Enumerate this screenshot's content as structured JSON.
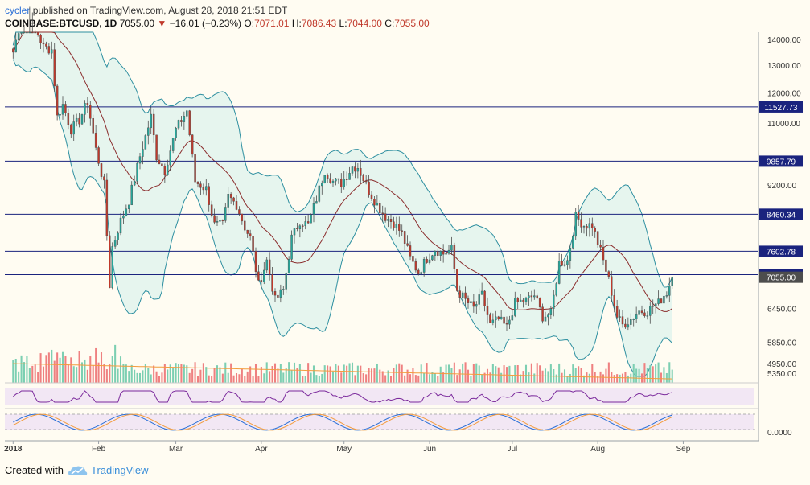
{
  "header": {
    "user": "cycler",
    "published_text": "published on TradingView.com, August 28, 2018 21:51 EDT",
    "symbol": "COINBASE:BTCUSD, 1D",
    "last": "7055.00",
    "arrow": "▼",
    "change": "−16.01 (−0.23%)",
    "o_label": "O:",
    "o_value": "7071.01",
    "h_label": "H:",
    "h_value": "7086.43",
    "l_label": "L:",
    "l_value": "7044.00",
    "c_label": "C:",
    "c_value": "7055.00"
  },
  "footer": {
    "created_with": "Created with",
    "brand": "TradingView",
    "logo_icon": "tradingview-cloud-icon"
  },
  "colors": {
    "background": "#fffcf2",
    "up": "#26a69a",
    "down": "#c0392b",
    "band": "#2e8fa0",
    "band_fill": "#e6f5ee",
    "ma": "#8b2d2d",
    "hline": "#1a237e",
    "volume_up": "#7ccfb2",
    "volume_down": "#ef8080",
    "volume_ma": "#f39c3d",
    "rsi": "#7b2a9c",
    "stoch_k": "#2a6fd6",
    "stoch_d": "#f39c3d",
    "osc_fill": "#e9d8f5"
  },
  "chart_data": {
    "type": "candlestick",
    "y_scale": "log",
    "ylim": [
      5300,
      14300
    ],
    "y_ticks": [
      14000,
      13000,
      12000,
      11000,
      9200,
      6450,
      5850,
      5350,
      4950
    ],
    "y_tick_labels": [
      "14000.00",
      "13000.00",
      "12000.00",
      "11000.00",
      "9200.00",
      "6450.00",
      "5850.00",
      "5350.00",
      "4950.00"
    ],
    "x_range": [
      "2017-12-29",
      "2018-09-28"
    ],
    "x_ticks": [
      "2018-01-01",
      "2018-02-01",
      "2018-03-01",
      "2018-04-01",
      "2018-05-01",
      "2018-06-01",
      "2018-07-01",
      "2018-08-01",
      "2018-09-01"
    ],
    "x_tick_labels": [
      "2018",
      "Feb",
      "Mar",
      "Apr",
      "May",
      "Jun",
      "Jul",
      "Aug",
      "Sep"
    ],
    "horizontal_levels": [
      11527.73,
      9857.79,
      8460.34,
      7602.78,
      7106.78
    ],
    "horizontal_level_labels": [
      "11527.73",
      "9857.79",
      "8460.34",
      "7602.78",
      "7106.78"
    ],
    "last_price": 7055.0,
    "last_price_label": "7055.00",
    "close_path": [
      [
        "2018-01-01",
        13500
      ],
      [
        "2018-01-04",
        14900
      ],
      [
        "2018-01-07",
        16200
      ],
      [
        "2018-01-09",
        14500
      ],
      [
        "2018-01-12",
        13700
      ],
      [
        "2018-01-15",
        13600
      ],
      [
        "2018-01-17",
        11200
      ],
      [
        "2018-01-19",
        11600
      ],
      [
        "2018-01-22",
        10800
      ],
      [
        "2018-01-25",
        11100
      ],
      [
        "2018-01-28",
        11700
      ],
      [
        "2018-01-31",
        10200
      ],
      [
        "2018-02-03",
        9200
      ],
      [
        "2018-02-05",
        6900
      ],
      [
        "2018-02-06",
        7700
      ],
      [
        "2018-02-09",
        8300
      ],
      [
        "2018-02-12",
        8800
      ],
      [
        "2018-02-16",
        10000
      ],
      [
        "2018-02-20",
        11200
      ],
      [
        "2018-02-22",
        10000
      ],
      [
        "2018-02-25",
        9600
      ],
      [
        "2018-03-01",
        10800
      ],
      [
        "2018-03-05",
        11400
      ],
      [
        "2018-03-08",
        9300
      ],
      [
        "2018-03-12",
        9100
      ],
      [
        "2018-03-15",
        8200
      ],
      [
        "2018-03-18",
        8200
      ],
      [
        "2018-03-20",
        8900
      ],
      [
        "2018-03-23",
        8700
      ],
      [
        "2018-03-26",
        8150
      ],
      [
        "2018-03-28",
        7900
      ],
      [
        "2018-03-31",
        6900
      ],
      [
        "2018-04-03",
        7400
      ],
      [
        "2018-04-06",
        6600
      ],
      [
        "2018-04-09",
        6800
      ],
      [
        "2018-04-12",
        7900
      ],
      [
        "2018-04-15",
        8300
      ],
      [
        "2018-04-18",
        8200
      ],
      [
        "2018-04-21",
        8850
      ],
      [
        "2018-04-24",
        9600
      ],
      [
        "2018-04-27",
        9300
      ],
      [
        "2018-04-30",
        9250
      ],
      [
        "2018-05-04",
        9700
      ],
      [
        "2018-05-06",
        9700
      ],
      [
        "2018-05-10",
        9050
      ],
      [
        "2018-05-13",
        8700
      ],
      [
        "2018-05-16",
        8400
      ],
      [
        "2018-05-19",
        8250
      ],
      [
        "2018-05-22",
        8000
      ],
      [
        "2018-05-25",
        7450
      ],
      [
        "2018-05-28",
        7150
      ],
      [
        "2018-05-31",
        7450
      ],
      [
        "2018-06-03",
        7650
      ],
      [
        "2018-06-06",
        7550
      ],
      [
        "2018-06-09",
        7650
      ],
      [
        "2018-06-11",
        6800
      ],
      [
        "2018-06-14",
        6600
      ],
      [
        "2018-06-17",
        6450
      ],
      [
        "2018-06-20",
        6700
      ],
      [
        "2018-06-23",
        6150
      ],
      [
        "2018-06-26",
        6250
      ],
      [
        "2018-06-29",
        6100
      ],
      [
        "2018-07-02",
        6550
      ],
      [
        "2018-07-06",
        6600
      ],
      [
        "2018-07-09",
        6700
      ],
      [
        "2018-07-12",
        6300
      ],
      [
        "2018-07-15",
        6350
      ],
      [
        "2018-07-18",
        7350
      ],
      [
        "2018-07-21",
        7400
      ],
      [
        "2018-07-24",
        8400
      ],
      [
        "2018-07-27",
        8200
      ],
      [
        "2018-07-30",
        8200
      ],
      [
        "2018-08-02",
        7600
      ],
      [
        "2018-08-05",
        7000
      ],
      [
        "2018-08-08",
        6300
      ],
      [
        "2018-08-10",
        6150
      ],
      [
        "2018-08-13",
        6250
      ],
      [
        "2018-08-16",
        6400
      ],
      [
        "2018-08-19",
        6400
      ],
      [
        "2018-08-21",
        6500
      ],
      [
        "2018-08-23",
        6550
      ],
      [
        "2018-08-25",
        6700
      ],
      [
        "2018-08-26",
        6750
      ],
      [
        "2018-08-28",
        7055
      ]
    ],
    "indicators": [
      "Bollinger Bands",
      "Moving Average",
      "Volume",
      "RSI",
      "Stochastic RSI"
    ],
    "stoch_axis_label": "0.0000",
    "grid": false
  }
}
